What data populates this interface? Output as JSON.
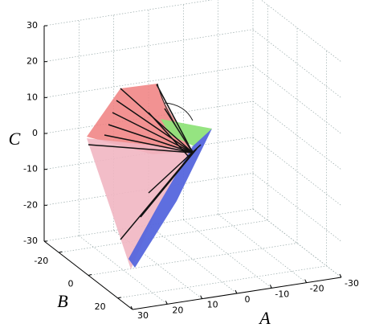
{
  "chart_data": {
    "type": "surface3d",
    "xlabel": "A",
    "ylabel": "B",
    "zlabel": "C",
    "xlim": [
      -30,
      30
    ],
    "ylim": [
      -30,
      30
    ],
    "zlim": [
      -30,
      30
    ],
    "xticks": [
      -30,
      -20,
      -10,
      0,
      10,
      20,
      30
    ],
    "yticks": [
      -20,
      0,
      20
    ],
    "zticks": [
      -30,
      -20,
      -10,
      0,
      10,
      20,
      30
    ],
    "grid": true
  }
}
